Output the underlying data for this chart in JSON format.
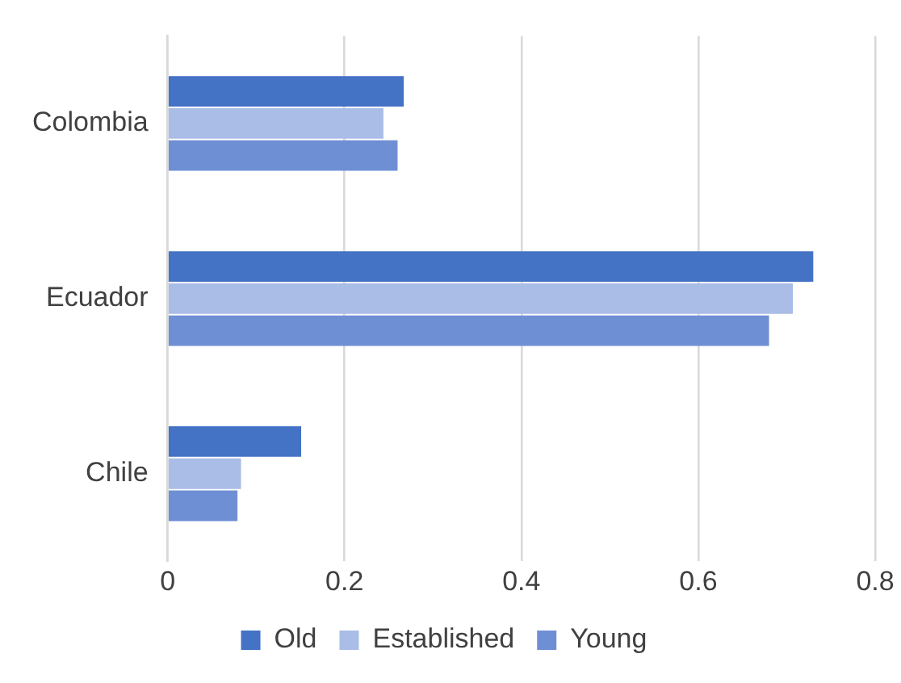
{
  "chart_data": {
    "type": "bar",
    "orientation": "horizontal",
    "categories": [
      "Colombia",
      "Ecuador",
      "Chile"
    ],
    "series": [
      {
        "name": "Old",
        "color": "#4472c4",
        "values": [
          0.267,
          0.73,
          0.151
        ]
      },
      {
        "name": "Established",
        "color": "#a9bde6",
        "values": [
          0.244,
          0.707,
          0.083
        ]
      },
      {
        "name": "Young",
        "color": "#6f8fd4",
        "values": [
          0.26,
          0.68,
          0.079
        ]
      }
    ],
    "xlim": [
      0,
      0.8
    ],
    "xticks": [
      0,
      0.2,
      0.4,
      0.6,
      0.8
    ],
    "grid": "x",
    "legend": "bottom"
  }
}
